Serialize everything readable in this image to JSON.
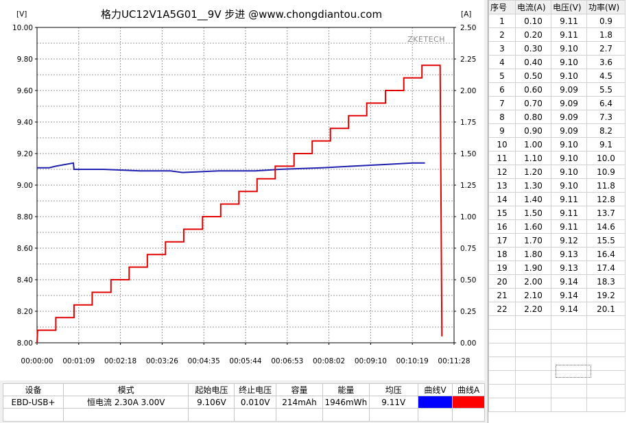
{
  "chart_data": {
    "type": "line",
    "title": "格力UC12V1A5G01__9V 步进 @www.chongdiantou.com",
    "watermark": "ZKETECH",
    "y_left_unit": "[V]",
    "y_right_unit": "[A]",
    "y_left_range": [
      8.0,
      10.0
    ],
    "y_right_range": [
      0.0,
      2.5
    ],
    "x_range_seconds": [
      0,
      688
    ],
    "y_left_ticks": [
      "10.00",
      "9.80",
      "9.60",
      "9.40",
      "9.20",
      "9.00",
      "8.80",
      "8.60",
      "8.40",
      "8.20",
      "8.00"
    ],
    "y_right_ticks": [
      "2.50",
      "2.25",
      "2.00",
      "1.75",
      "1.50",
      "1.25",
      "1.00",
      "0.75",
      "0.50",
      "0.25",
      "0.00"
    ],
    "x_ticks": [
      "00:00:00",
      "00:01:09",
      "00:02:18",
      "00:03:26",
      "00:04:35",
      "00:05:44",
      "00:06:53",
      "00:08:02",
      "00:09:10",
      "00:10:19",
      "00:11:28"
    ],
    "grid": true,
    "colors": {
      "voltage": "#1f1fb0",
      "current": "#e00000"
    },
    "series": [
      {
        "axis": "left",
        "color": "#1f1fb0",
        "points": [
          [
            0,
            9.11
          ],
          [
            20,
            9.11
          ],
          [
            31,
            9.12
          ],
          [
            60,
            9.14
          ],
          [
            61,
            9.1
          ],
          [
            70,
            9.1
          ],
          [
            110,
            9.1
          ],
          [
            170,
            9.09
          ],
          [
            220,
            9.09
          ],
          [
            240,
            9.08
          ],
          [
            300,
            9.09
          ],
          [
            360,
            9.09
          ],
          [
            400,
            9.1
          ],
          [
            470,
            9.11
          ],
          [
            520,
            9.12
          ],
          [
            570,
            9.13
          ],
          [
            620,
            9.14
          ],
          [
            640,
            9.14
          ]
        ]
      },
      {
        "axis": "right",
        "color": "#e00000",
        "points": [
          [
            0,
            0.0
          ],
          [
            1,
            0.1
          ],
          [
            31,
            0.1
          ],
          [
            31,
            0.2
          ],
          [
            61,
            0.2
          ],
          [
            61,
            0.3
          ],
          [
            91,
            0.3
          ],
          [
            91,
            0.4
          ],
          [
            122,
            0.4
          ],
          [
            122,
            0.5
          ],
          [
            152,
            0.5
          ],
          [
            152,
            0.6
          ],
          [
            182,
            0.6
          ],
          [
            182,
            0.7
          ],
          [
            212,
            0.7
          ],
          [
            212,
            0.8
          ],
          [
            242,
            0.8
          ],
          [
            242,
            0.9
          ],
          [
            273,
            0.9
          ],
          [
            273,
            1.0
          ],
          [
            303,
            1.0
          ],
          [
            303,
            1.1
          ],
          [
            333,
            1.1
          ],
          [
            333,
            1.2
          ],
          [
            363,
            1.2
          ],
          [
            363,
            1.3
          ],
          [
            393,
            1.3
          ],
          [
            393,
            1.4
          ],
          [
            424,
            1.4
          ],
          [
            424,
            1.5
          ],
          [
            454,
            1.5
          ],
          [
            454,
            1.6
          ],
          [
            484,
            1.6
          ],
          [
            484,
            1.7
          ],
          [
            514,
            1.7
          ],
          [
            514,
            1.8
          ],
          [
            544,
            1.8
          ],
          [
            544,
            1.9
          ],
          [
            575,
            1.9
          ],
          [
            575,
            2.0
          ],
          [
            605,
            2.0
          ],
          [
            605,
            2.1
          ],
          [
            635,
            2.1
          ],
          [
            635,
            2.2
          ],
          [
            665,
            2.2
          ],
          [
            665,
            2.2
          ],
          [
            668,
            0.05
          ]
        ]
      }
    ]
  },
  "table": {
    "headers": [
      "序号",
      "电流(A)",
      "电压(V)",
      "功率(W)"
    ],
    "rows": [
      [
        "1",
        "0.10",
        "9.11",
        "0.9"
      ],
      [
        "2",
        "0.20",
        "9.11",
        "1.8"
      ],
      [
        "3",
        "0.30",
        "9.10",
        "2.7"
      ],
      [
        "4",
        "0.40",
        "9.10",
        "3.6"
      ],
      [
        "5",
        "0.50",
        "9.10",
        "4.5"
      ],
      [
        "6",
        "0.60",
        "9.09",
        "5.5"
      ],
      [
        "7",
        "0.70",
        "9.09",
        "6.4"
      ],
      [
        "8",
        "0.80",
        "9.09",
        "7.3"
      ],
      [
        "9",
        "0.90",
        "9.09",
        "8.2"
      ],
      [
        "10",
        "1.00",
        "9.10",
        "9.1"
      ],
      [
        "11",
        "1.10",
        "9.10",
        "10.0"
      ],
      [
        "12",
        "1.20",
        "9.10",
        "10.9"
      ],
      [
        "13",
        "1.30",
        "9.10",
        "11.8"
      ],
      [
        "14",
        "1.40",
        "9.11",
        "12.8"
      ],
      [
        "15",
        "1.50",
        "9.11",
        "13.7"
      ],
      [
        "16",
        "1.60",
        "9.11",
        "14.6"
      ],
      [
        "17",
        "1.70",
        "9.12",
        "15.5"
      ],
      [
        "18",
        "1.80",
        "9.13",
        "16.4"
      ],
      [
        "19",
        "1.90",
        "9.13",
        "17.4"
      ],
      [
        "20",
        "2.00",
        "9.14",
        "18.3"
      ],
      [
        "21",
        "2.10",
        "9.14",
        "19.2"
      ],
      [
        "22",
        "2.20",
        "9.14",
        "20.1"
      ]
    ]
  },
  "info": {
    "headers": [
      "设备",
      "模式",
      "起始电压",
      "终止电压",
      "容量",
      "能量",
      "均压",
      "曲线V",
      "曲线A"
    ],
    "values": [
      "EBD-USB+",
      "恒电流  2.30A  3.00V",
      "9.106V",
      "0.010V",
      "214mAh",
      "1946mWh",
      "9.11V",
      "",
      ""
    ],
    "swatch_colors": [
      "#0000ff",
      "#ff0000"
    ]
  }
}
